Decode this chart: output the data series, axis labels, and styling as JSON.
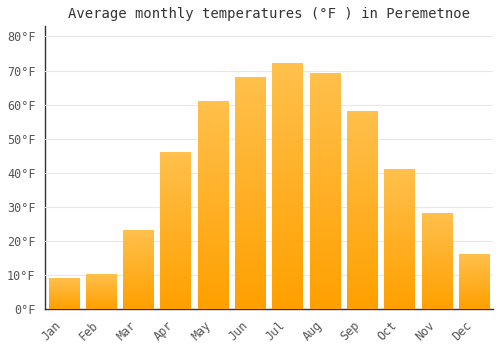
{
  "title": "Average monthly temperatures (°F ) in Peremetnoe",
  "months": [
    "Jan",
    "Feb",
    "Mar",
    "Apr",
    "May",
    "Jun",
    "Jul",
    "Aug",
    "Sep",
    "Oct",
    "Nov",
    "Dec"
  ],
  "values": [
    9,
    10,
    23,
    46,
    61,
    68,
    72,
    69,
    58,
    41,
    28,
    16
  ],
  "bar_color_top": "#FFC04C",
  "bar_color_bottom": "#FFA000",
  "ylim": [
    0,
    83
  ],
  "yticks": [
    0,
    10,
    20,
    30,
    40,
    50,
    60,
    70,
    80
  ],
  "ytick_labels": [
    "0°F",
    "10°F",
    "20°F",
    "30°F",
    "40°F",
    "50°F",
    "60°F",
    "70°F",
    "80°F"
  ],
  "background_color": "#ffffff",
  "grid_color": "#e8e8e8",
  "title_fontsize": 10,
  "tick_fontsize": 8.5,
  "bar_width": 0.82
}
